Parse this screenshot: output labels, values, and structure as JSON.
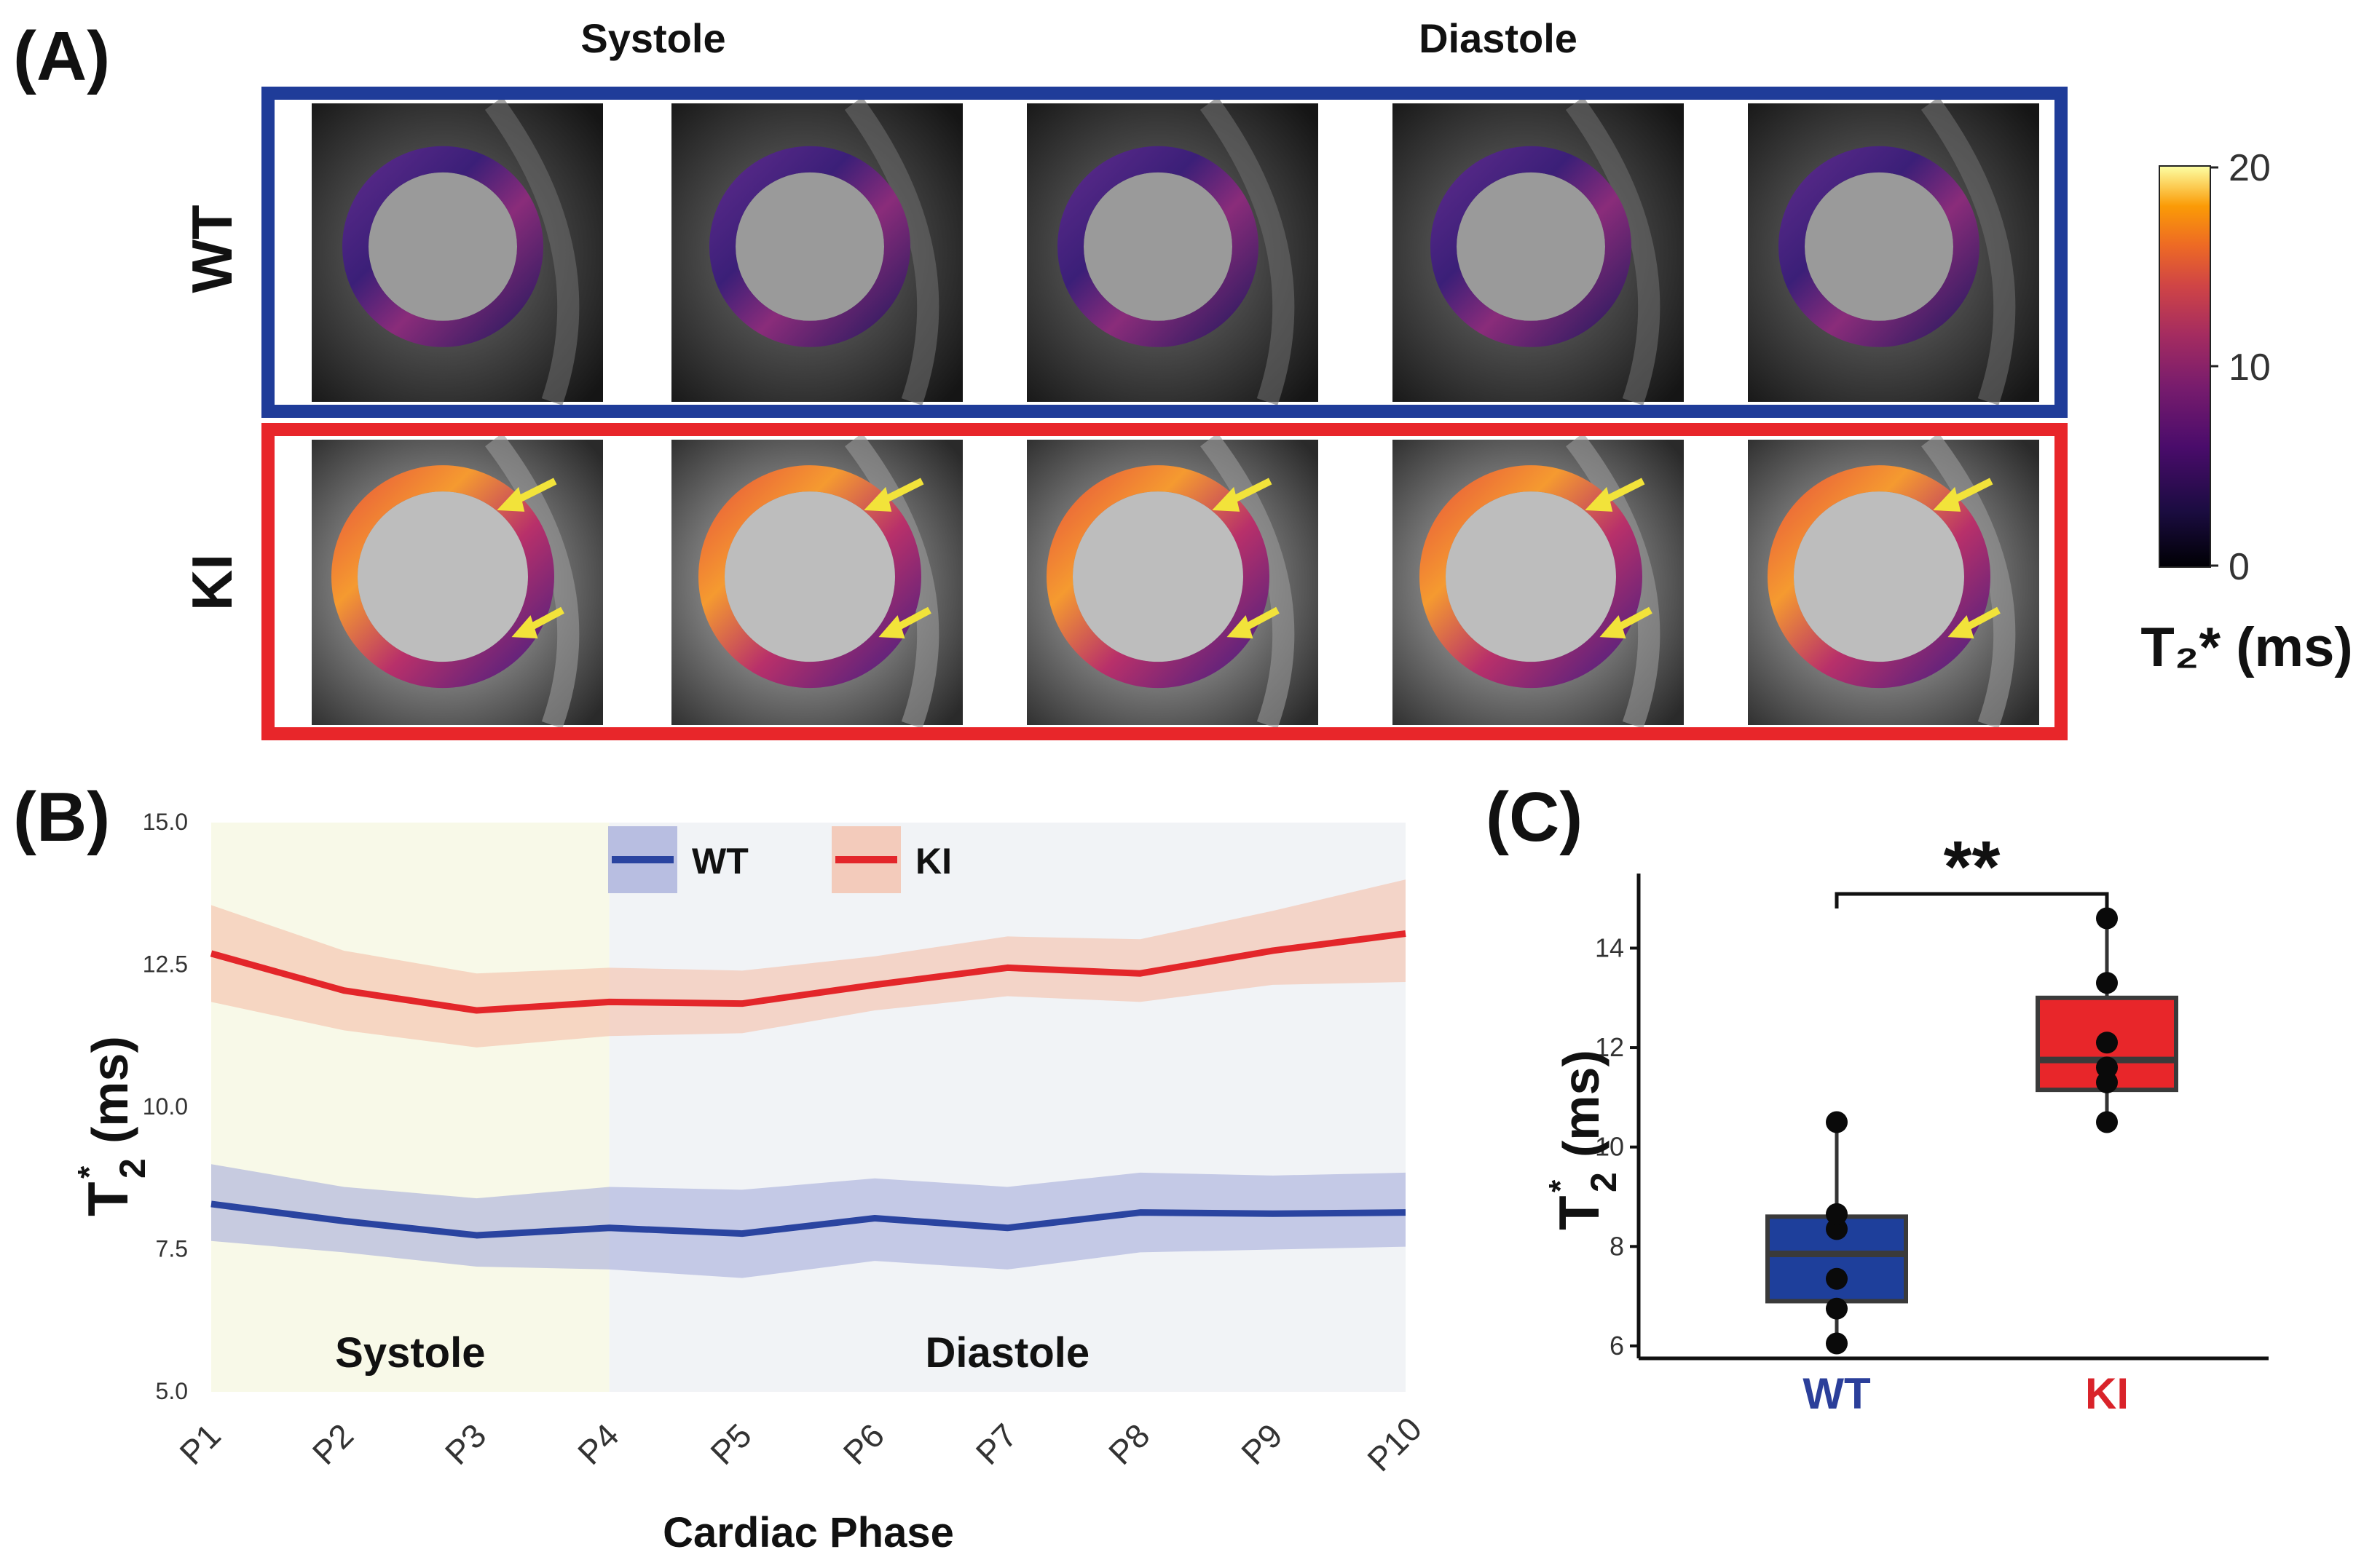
{
  "figure": {
    "panel_a": {
      "letter": "(A)",
      "header_systole": "Systole",
      "header_diastole": "Diastole",
      "row_wt": "WT",
      "row_ki": "KI",
      "colorbar": {
        "max_label": "20",
        "mid_label": "10",
        "min_label": "0",
        "title": "T₂* (ms)"
      },
      "colors": {
        "wt_frame": "#1f3c99",
        "ki_frame": "#e8262a",
        "arrow": "#f2e33a"
      }
    },
    "panel_b": {
      "letter": "(B)"
    },
    "panel_c": {
      "letter": "(C)",
      "significance": "**"
    }
  },
  "chart_data": [
    {
      "id": "panel-b",
      "type": "line",
      "title": "",
      "xlabel": "Cardiac Phase",
      "ylabel_main": "T",
      "ylabel_sup": "*",
      "ylabel_sub": "2",
      "ylabel_units": "(ms)",
      "categories": [
        "P1",
        "P2",
        "P3",
        "P4",
        "P5",
        "P6",
        "P7",
        "P8",
        "P9",
        "P10"
      ],
      "ylim": [
        5.0,
        15.0
      ],
      "yticks": [
        "5.0",
        "7.5",
        "10.0",
        "12.5",
        "15.0"
      ],
      "regions": [
        {
          "label": "Systole",
          "from": "P1",
          "to": "P4",
          "color": "#f8f9e8"
        },
        {
          "label": "Diastole",
          "from": "P4",
          "to": "P10",
          "color": "#f1f3f6"
        }
      ],
      "series": [
        {
          "name": "WT",
          "color": "#2a44a0",
          "band_color": "#9fa6d8",
          "values": [
            8.3,
            8.0,
            7.75,
            7.88,
            7.78,
            8.05,
            7.88,
            8.15,
            8.13,
            8.15
          ],
          "lower": [
            7.65,
            7.45,
            7.2,
            7.15,
            7.0,
            7.3,
            7.15,
            7.45,
            7.5,
            7.55
          ],
          "upper": [
            9.0,
            8.6,
            8.4,
            8.6,
            8.55,
            8.75,
            8.6,
            8.85,
            8.8,
            8.85
          ]
        },
        {
          "name": "KI",
          "color": "#e3262a",
          "band_color": "#f4b9a3",
          "values": [
            12.7,
            12.05,
            11.7,
            11.85,
            11.82,
            12.15,
            12.45,
            12.35,
            12.75,
            13.05
          ],
          "lower": [
            11.85,
            11.35,
            11.05,
            11.25,
            11.3,
            11.7,
            11.95,
            11.85,
            12.15,
            12.2
          ],
          "upper": [
            13.55,
            12.75,
            12.35,
            12.45,
            12.4,
            12.65,
            13.0,
            12.95,
            13.45,
            14.0
          ]
        }
      ]
    },
    {
      "id": "panel-c",
      "type": "box",
      "title": "",
      "xlabel": "",
      "ylabel_main": "T",
      "ylabel_sup": "*",
      "ylabel_sub": "2",
      "ylabel_units": "(ms)",
      "categories": [
        "WT",
        "KI"
      ],
      "ylim": [
        5.75,
        15.5
      ],
      "yticks": [
        "6",
        "8",
        "10",
        "12",
        "14"
      ],
      "boxes": [
        {
          "name": "WT",
          "color": "#1e3f9b",
          "label_color": "#2b3f9a",
          "q1": 6.9,
          "median": 7.85,
          "q3": 8.6,
          "whisker_low": 6.05,
          "whisker_high": 10.5,
          "points": [
            6.05,
            6.75,
            7.35,
            8.35,
            8.65,
            10.5
          ]
        },
        {
          "name": "KI",
          "color": "#e8262a",
          "label_color": "#d9232a",
          "q1": 11.15,
          "median": 11.75,
          "q3": 13.0,
          "whisker_low": 10.5,
          "whisker_high": 14.6,
          "points": [
            10.5,
            11.3,
            11.6,
            12.1,
            13.3,
            14.6
          ]
        }
      ]
    }
  ]
}
